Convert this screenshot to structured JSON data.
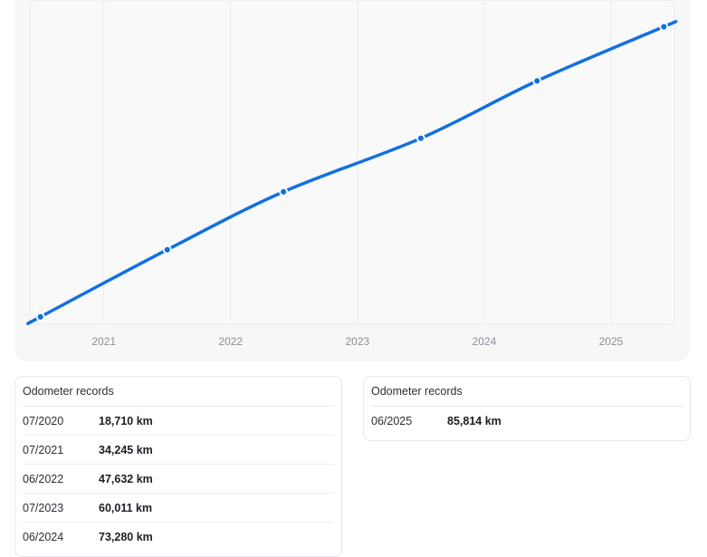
{
  "chart_data": {
    "type": "line",
    "title": "",
    "xlabel": "",
    "ylabel": "",
    "x_tick_labels": [
      "2021",
      "2022",
      "2023",
      "2024",
      "2025"
    ],
    "x_range": [
      "2020-06",
      "2025-07"
    ],
    "y_range_km": [
      17000,
      92000
    ],
    "grid": "vertical",
    "series": [
      {
        "color": "#1170e0",
        "points": [
          {
            "x": "2020-07",
            "y": 18710
          },
          {
            "x": "2021-07",
            "y": 34245
          },
          {
            "x": "2022-06",
            "y": 47632
          },
          {
            "x": "2023-07",
            "y": 60011
          },
          {
            "x": "2024-06",
            "y": 73280
          },
          {
            "x": "2025-06",
            "y": 85814
          }
        ]
      }
    ]
  },
  "records_left": {
    "title": "Odometer records",
    "rows": [
      {
        "date": "07/2020",
        "km": "18,710 km"
      },
      {
        "date": "07/2021",
        "km": "34,245 km"
      },
      {
        "date": "06/2022",
        "km": "47,632 km"
      },
      {
        "date": "07/2023",
        "km": "60,011 km"
      },
      {
        "date": "06/2024",
        "km": "73,280 km"
      }
    ]
  },
  "records_right": {
    "title": "Odometer records",
    "rows": [
      {
        "date": "06/2025",
        "km": "85,814 km"
      }
    ]
  }
}
